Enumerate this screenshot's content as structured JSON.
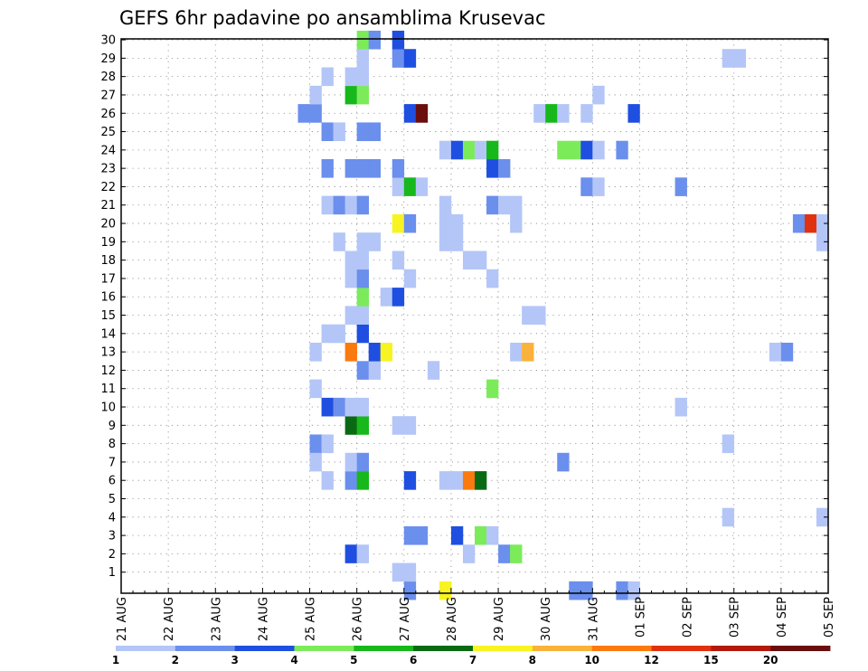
{
  "chart_data": {
    "type": "heatmap",
    "title": "GEFS 6hr padavine po ansamblima Krusevac",
    "xlabel": "",
    "ylabel": "",
    "x_tick_labels": [
      "21 AUG",
      "22 AUG",
      "23 AUG",
      "24 AUG",
      "25 AUG",
      "26 AUG",
      "27 AUG",
      "28 AUG",
      "29 AUG",
      "30 AUG",
      "31 AUG",
      "01 SEP",
      "02 SEP",
      "03 SEP",
      "04 SEP",
      "05 SEP"
    ],
    "y_tick_labels": [
      "1",
      "2",
      "3",
      "4",
      "5",
      "6",
      "7",
      "8",
      "9",
      "10",
      "11",
      "12",
      "13",
      "14",
      "15",
      "16",
      "17",
      "18",
      "19",
      "20",
      "21",
      "22",
      "23",
      "24",
      "25",
      "26",
      "27",
      "28",
      "29",
      "30"
    ],
    "y_range": [
      0,
      30
    ],
    "x_step": "6 hours",
    "grid": true,
    "color_scale": {
      "thresholds": [
        "1",
        "2",
        "3",
        "4",
        "5",
        "6",
        "7",
        "8",
        "10",
        "12",
        "15",
        "20"
      ],
      "colors": [
        "#b4c6f7",
        "#6b8fec",
        "#1f4fe0",
        "#7ceb5a",
        "#17b81b",
        "#0a6a14",
        "#f8f422",
        "#fab23a",
        "#fa7a10",
        "#e0320f",
        "#b21a0e",
        "#6a0d0d"
      ]
    },
    "cells": [
      {
        "t": "25 AUG 00Z",
        "member": 13,
        "level": 1
      },
      {
        "t": "25 AUG 00Z",
        "member": 11,
        "level": 1
      },
      {
        "t": "25 AUG 00Z",
        "member": 8,
        "level": 2
      },
      {
        "t": "25 AUG 00Z",
        "member": 7,
        "level": 1
      },
      {
        "t": "25 AUG 00Z",
        "member": 26,
        "level": 2
      },
      {
        "t": "25 AUG 00Z",
        "member": 27,
        "level": 1
      },
      {
        "t": "24 AUG 18Z",
        "member": 26,
        "level": 2
      },
      {
        "t": "25 AUG 06Z",
        "member": 6,
        "level": 1
      },
      {
        "t": "25 AUG 06Z",
        "member": 8,
        "level": 1
      },
      {
        "t": "25 AUG 06Z",
        "member": 10,
        "level": 3
      },
      {
        "t": "25 AUG 06Z",
        "member": 14,
        "level": 1
      },
      {
        "t": "25 AUG 06Z",
        "member": 21,
        "level": 1
      },
      {
        "t": "25 AUG 06Z",
        "member": 23,
        "level": 2
      },
      {
        "t": "25 AUG 06Z",
        "member": 25,
        "level": 2
      },
      {
        "t": "25 AUG 06Z",
        "member": 28,
        "level": 1
      },
      {
        "t": "25 AUG 12Z",
        "member": 10,
        "level": 2
      },
      {
        "t": "25 AUG 12Z",
        "member": 14,
        "level": 1
      },
      {
        "t": "25 AUG 12Z",
        "member": 19,
        "level": 1
      },
      {
        "t": "25 AUG 12Z",
        "member": 21,
        "level": 2
      },
      {
        "t": "25 AUG 12Z",
        "member": 25,
        "level": 1
      },
      {
        "t": "25 AUG 18Z",
        "member": 2,
        "level": 3
      },
      {
        "t": "25 AUG 18Z",
        "member": 6,
        "level": 2
      },
      {
        "t": "25 AUG 18Z",
        "member": 7,
        "level": 1
      },
      {
        "t": "25 AUG 18Z",
        "member": 9,
        "level": 6
      },
      {
        "t": "25 AUG 18Z",
        "member": 10,
        "level": 1
      },
      {
        "t": "25 AUG 18Z",
        "member": 13,
        "level": 9
      },
      {
        "t": "25 AUG 18Z",
        "member": 15,
        "level": 1
      },
      {
        "t": "25 AUG 18Z",
        "member": 17,
        "level": 1
      },
      {
        "t": "25 AUG 18Z",
        "member": 18,
        "level": 1
      },
      {
        "t": "25 AUG 18Z",
        "member": 21,
        "level": 1
      },
      {
        "t": "25 AUG 18Z",
        "member": 23,
        "level": 2
      },
      {
        "t": "25 AUG 18Z",
        "member": 27,
        "level": 5
      },
      {
        "t": "25 AUG 18Z",
        "member": 28,
        "level": 1
      },
      {
        "t": "26 AUG 00Z",
        "member": 2,
        "level": 1
      },
      {
        "t": "26 AUG 00Z",
        "member": 6,
        "level": 5
      },
      {
        "t": "26 AUG 00Z",
        "member": 7,
        "level": 2
      },
      {
        "t": "26 AUG 00Z",
        "member": 9,
        "level": 5
      },
      {
        "t": "26 AUG 00Z",
        "member": 10,
        "level": 1
      },
      {
        "t": "26 AUG 00Z",
        "member": 12,
        "level": 2
      },
      {
        "t": "26 AUG 00Z",
        "member": 14,
        "level": 3
      },
      {
        "t": "26 AUG 00Z",
        "member": 15,
        "level": 1
      },
      {
        "t": "26 AUG 00Z",
        "member": 16,
        "level": 4
      },
      {
        "t": "26 AUG 00Z",
        "member": 17,
        "level": 2
      },
      {
        "t": "26 AUG 00Z",
        "member": 18,
        "level": 1
      },
      {
        "t": "26 AUG 00Z",
        "member": 19,
        "level": 1
      },
      {
        "t": "26 AUG 00Z",
        "member": 21,
        "level": 2
      },
      {
        "t": "26 AUG 00Z",
        "member": 23,
        "level": 2
      },
      {
        "t": "26 AUG 00Z",
        "member": 25,
        "level": 2
      },
      {
        "t": "26 AUG 00Z",
        "member": 27,
        "level": 4
      },
      {
        "t": "26 AUG 00Z",
        "member": 28,
        "level": 1
      },
      {
        "t": "26 AUG 00Z",
        "member": 29,
        "level": 1
      },
      {
        "t": "26 AUG 00Z",
        "member": 30,
        "level": 4
      },
      {
        "t": "26 AUG 06Z",
        "member": 12,
        "level": 1
      },
      {
        "t": "26 AUG 06Z",
        "member": 13,
        "level": 3
      },
      {
        "t": "26 AUG 06Z",
        "member": 19,
        "level": 1
      },
      {
        "t": "26 AUG 06Z",
        "member": 23,
        "level": 2
      },
      {
        "t": "26 AUG 06Z",
        "member": 25,
        "level": 2
      },
      {
        "t": "26 AUG 06Z",
        "member": 30,
        "level": 2
      },
      {
        "t": "26 AUG 12Z",
        "member": 13,
        "level": 7
      },
      {
        "t": "26 AUG 12Z",
        "member": 16,
        "level": 1
      },
      {
        "t": "26 AUG 18Z",
        "member": 1,
        "level": 1
      },
      {
        "t": "26 AUG 18Z",
        "member": 9,
        "level": 1
      },
      {
        "t": "26 AUG 18Z",
        "member": 16,
        "level": 3
      },
      {
        "t": "26 AUG 18Z",
        "member": 18,
        "level": 1
      },
      {
        "t": "26 AUG 18Z",
        "member": 20,
        "level": 7
      },
      {
        "t": "26 AUG 18Z",
        "member": 22,
        "level": 1
      },
      {
        "t": "26 AUG 18Z",
        "member": 23,
        "level": 2
      },
      {
        "t": "26 AUG 18Z",
        "member": 29,
        "level": 2
      },
      {
        "t": "26 AUG 18Z",
        "member": 30,
        "level": 3
      },
      {
        "t": "27 AUG 00Z",
        "member": 0,
        "level": 2
      },
      {
        "t": "27 AUG 00Z",
        "member": 1,
        "level": 1
      },
      {
        "t": "27 AUG 00Z",
        "member": 3,
        "level": 2
      },
      {
        "t": "27 AUG 00Z",
        "member": 6,
        "level": 3
      },
      {
        "t": "27 AUG 00Z",
        "member": 9,
        "level": 1
      },
      {
        "t": "27 AUG 00Z",
        "member": 17,
        "level": 1
      },
      {
        "t": "27 AUG 00Z",
        "member": 20,
        "level": 2
      },
      {
        "t": "27 AUG 00Z",
        "member": 22,
        "level": 5
      },
      {
        "t": "27 AUG 00Z",
        "member": 26,
        "level": 3
      },
      {
        "t": "27 AUG 00Z",
        "member": 29,
        "level": 3
      },
      {
        "t": "27 AUG 06Z",
        "member": 3,
        "level": 2
      },
      {
        "t": "27 AUG 06Z",
        "member": 22,
        "level": 1
      },
      {
        "t": "27 AUG 06Z",
        "member": 26,
        "level": 12
      },
      {
        "t": "27 AUG 12Z",
        "member": 12,
        "level": 1
      },
      {
        "t": "27 AUG 18Z",
        "member": 0,
        "level": 7
      },
      {
        "t": "27 AUG 18Z",
        "member": 6,
        "level": 1
      },
      {
        "t": "27 AUG 18Z",
        "member": 19,
        "level": 1
      },
      {
        "t": "27 AUG 18Z",
        "member": 20,
        "level": 1
      },
      {
        "t": "27 AUG 18Z",
        "member": 21,
        "level": 1
      },
      {
        "t": "27 AUG 18Z",
        "member": 24,
        "level": 1
      },
      {
        "t": "28 AUG 00Z",
        "member": 3,
        "level": 3
      },
      {
        "t": "28 AUG 00Z",
        "member": 6,
        "level": 1
      },
      {
        "t": "28 AUG 00Z",
        "member": 19,
        "level": 1
      },
      {
        "t": "28 AUG 00Z",
        "member": 20,
        "level": 1
      },
      {
        "t": "28 AUG 00Z",
        "member": 24,
        "level": 3
      },
      {
        "t": "28 AUG 06Z",
        "member": 2,
        "level": 1
      },
      {
        "t": "28 AUG 06Z",
        "member": 6,
        "level": 9
      },
      {
        "t": "28 AUG 06Z",
        "member": 18,
        "level": 1
      },
      {
        "t": "28 AUG 06Z",
        "member": 24,
        "level": 4
      },
      {
        "t": "28 AUG 12Z",
        "member": 3,
        "level": 4
      },
      {
        "t": "28 AUG 12Z",
        "member": 6,
        "level": 6
      },
      {
        "t": "28 AUG 12Z",
        "member": 18,
        "level": 1
      },
      {
        "t": "28 AUG 12Z",
        "member": 24,
        "level": 1
      },
      {
        "t": "28 AUG 18Z",
        "member": 3,
        "level": 1
      },
      {
        "t": "28 AUG 18Z",
        "member": 11,
        "level": 4
      },
      {
        "t": "28 AUG 18Z",
        "member": 17,
        "level": 1
      },
      {
        "t": "28 AUG 18Z",
        "member": 21,
        "level": 2
      },
      {
        "t": "28 AUG 18Z",
        "member": 23,
        "level": 3
      },
      {
        "t": "28 AUG 18Z",
        "member": 24,
        "level": 5
      },
      {
        "t": "29 AUG 00Z",
        "member": 2,
        "level": 2
      },
      {
        "t": "29 AUG 00Z",
        "member": 21,
        "level": 1
      },
      {
        "t": "29 AUG 00Z",
        "member": 23,
        "level": 2
      },
      {
        "t": "29 AUG 06Z",
        "member": 2,
        "level": 4
      },
      {
        "t": "29 AUG 06Z",
        "member": 13,
        "level": 1
      },
      {
        "t": "29 AUG 06Z",
        "member": 20,
        "level": 1
      },
      {
        "t": "29 AUG 06Z",
        "member": 21,
        "level": 1
      },
      {
        "t": "29 AUG 12Z",
        "member": 13,
        "level": 8
      },
      {
        "t": "29 AUG 12Z",
        "member": 15,
        "level": 1
      },
      {
        "t": "29 AUG 18Z",
        "member": 15,
        "level": 1
      },
      {
        "t": "30 AUG 18Z",
        "member": 26,
        "level": 1
      },
      {
        "t": "29 AUG 18Z",
        "member": 26,
        "level": 1
      },
      {
        "t": "30 AUG 00Z",
        "member": 26,
        "level": 5
      },
      {
        "t": "30 AUG 06Z",
        "member": 7,
        "level": 2
      },
      {
        "t": "30 AUG 06Z",
        "member": 24,
        "level": 4
      },
      {
        "t": "30 AUG 06Z",
        "member": 26,
        "level": 1
      },
      {
        "t": "30 AUG 12Z",
        "member": 0,
        "level": 2
      },
      {
        "t": "30 AUG 12Z",
        "member": 24,
        "level": 4
      },
      {
        "t": "30 AUG 18Z",
        "member": 0,
        "level": 2
      },
      {
        "t": "30 AUG 18Z",
        "member": 22,
        "level": 2
      },
      {
        "t": "30 AUG 18Z",
        "member": 24,
        "level": 3
      },
      {
        "t": "31 AUG 00Z",
        "member": 22,
        "level": 1
      },
      {
        "t": "31 AUG 00Z",
        "member": 24,
        "level": 1
      },
      {
        "t": "31 AUG 00Z",
        "member": 27,
        "level": 1
      },
      {
        "t": "31 AUG 12Z",
        "member": 0,
        "level": 2
      },
      {
        "t": "31 AUG 12Z",
        "member": 24,
        "level": 2
      },
      {
        "t": "31 AUG 18Z",
        "member": 0,
        "level": 1
      },
      {
        "t": "31 AUG 18Z",
        "member": 26,
        "level": 3
      },
      {
        "t": "01 SEP 18Z",
        "member": 10,
        "level": 1
      },
      {
        "t": "01 SEP 18Z",
        "member": 22,
        "level": 2
      },
      {
        "t": "02 SEP 18Z",
        "member": 4,
        "level": 1
      },
      {
        "t": "02 SEP 18Z",
        "member": 8,
        "level": 1
      },
      {
        "t": "02 SEP 18Z",
        "member": 29,
        "level": 1
      },
      {
        "t": "03 SEP 00Z",
        "member": 29,
        "level": 1
      },
      {
        "t": "03 SEP 18Z",
        "member": 13,
        "level": 1
      },
      {
        "t": "04 SEP 00Z",
        "member": 13,
        "level": 2
      },
      {
        "t": "04 SEP 06Z",
        "member": 20,
        "level": 2
      },
      {
        "t": "04 SEP 12Z",
        "member": 20,
        "level": 10
      },
      {
        "t": "04 SEP 18Z",
        "member": 4,
        "level": 1
      },
      {
        "t": "04 SEP 18Z",
        "member": 19,
        "level": 1
      },
      {
        "t": "04 SEP 18Z",
        "member": 20,
        "level": 1
      }
    ]
  }
}
